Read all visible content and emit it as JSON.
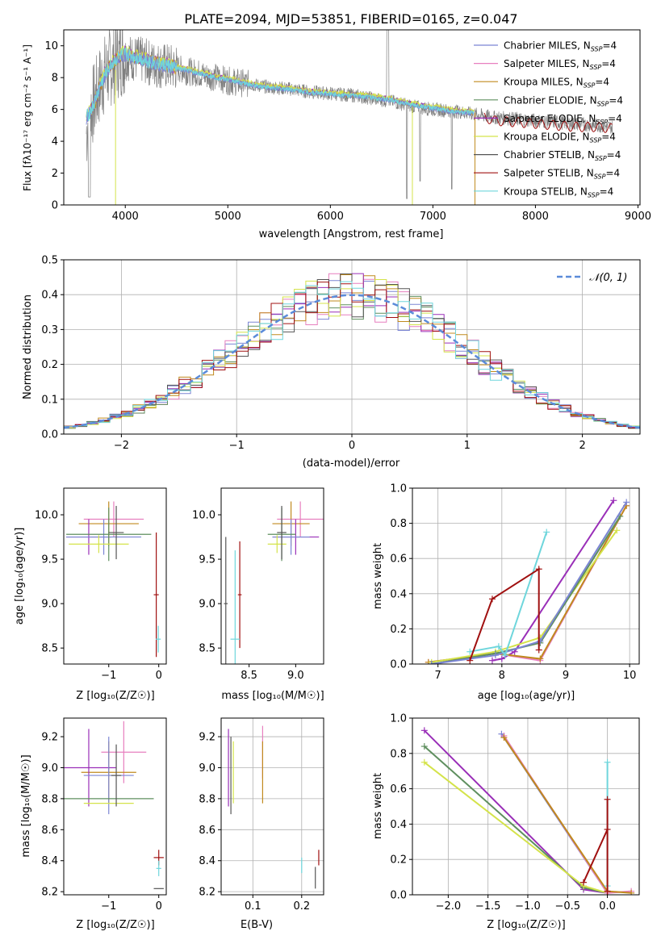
{
  "figure_title": "PLATE=2094, MJD=53851, FIBERID=0165, z=0.047",
  "colors": {
    "Chabrier MILES": "#7b85d4",
    "Salpeter MILES": "#e77fbf",
    "Kroupa MILES": "#c08a1e",
    "Chabrier ELODIE": "#5f8f5f",
    "Salpeter ELODIE": "#9a2fb8",
    "Kroupa ELODIE": "#d4e34a",
    "Chabrier STELIB": "#555555",
    "Salpeter STELIB": "#a01010",
    "Kroupa STELIB": "#6fd6dc",
    "data": "#808080",
    "normal": "#5b8bd9",
    "grid": "#b0b0b0"
  },
  "chart_data": [
    {
      "id": "spectrum",
      "type": "line",
      "xlabel": "wavelength [Angstrom, rest frame]",
      "ylabel": "Flux [fλ10⁻¹⁷ erg cm⁻² s⁻¹ A⁻¹]",
      "xlim": [
        3400,
        9020
      ],
      "ylim": [
        0,
        11
      ],
      "xticks": [
        4000,
        5000,
        6000,
        7000,
        8000,
        9000
      ],
      "yticks": [
        0,
        2,
        4,
        6,
        8,
        10
      ],
      "grid": false,
      "legend_position": "upper right",
      "legend": [
        {
          "label": "Chabrier MILES, N",
          "sub": "SSP",
          "suffix": "=4"
        },
        {
          "label": "Salpeter MILES, N",
          "sub": "SSP",
          "suffix": "=4"
        },
        {
          "label": "Kroupa MILES, N",
          "sub": "SSP",
          "suffix": "=4"
        },
        {
          "label": "Chabrier ELODIE, N",
          "sub": "SSP",
          "suffix": "=4"
        },
        {
          "label": "Salpeter ELODIE, N",
          "sub": "SSP",
          "suffix": "=4"
        },
        {
          "label": "Kroupa ELODIE, N",
          "sub": "SSP",
          "suffix": "=4"
        },
        {
          "label": "Chabrier STELIB, N",
          "sub": "SSP",
          "suffix": "=4"
        },
        {
          "label": "Salpeter STELIB, N",
          "sub": "SSP",
          "suffix": "=4"
        },
        {
          "label": "Kroupa STELIB, N",
          "sub": "SSP",
          "suffix": "=4"
        }
      ],
      "data_series": {
        "name": "data",
        "x": [
          3620,
          3650,
          3700,
          3750,
          3800,
          3850,
          3900,
          3950,
          4000,
          4100,
          4200,
          4300,
          4400,
          4500,
          4600,
          4700,
          4800,
          4900,
          5000,
          5200,
          5400,
          5600,
          5800,
          6000,
          6200,
          6400,
          6600,
          6800,
          7000,
          7200,
          7400,
          7600,
          7800,
          8000,
          8200,
          8400,
          8600,
          8750
        ],
        "y": [
          4.5,
          5.8,
          6.5,
          7.5,
          8.2,
          8.6,
          9.0,
          9.3,
          9.3,
          9.2,
          9.0,
          8.8,
          8.7,
          8.6,
          8.4,
          8.3,
          8.1,
          8.0,
          7.8,
          7.6,
          7.4,
          7.3,
          7.1,
          7.0,
          6.9,
          6.7,
          6.5,
          6.2,
          6.0,
          5.9,
          5.7,
          5.5,
          5.4,
          5.3,
          5.2,
          5.1,
          5.0,
          4.9
        ]
      },
      "model_curve": {
        "x": [
          3620,
          3650,
          3700,
          3750,
          3800,
          3850,
          3900,
          3950,
          4000,
          4100,
          4200,
          4300,
          4400,
          4500,
          4600,
          4700,
          4800,
          4900,
          5000,
          5200,
          5400,
          5600,
          5800,
          6000,
          6200,
          6400,
          6600,
          6800,
          7000,
          7200,
          7400
        ],
        "y": [
          5.5,
          5.8,
          6.4,
          7.4,
          8.2,
          8.7,
          9.1,
          9.4,
          9.5,
          9.3,
          9.1,
          8.9,
          8.8,
          8.6,
          8.5,
          8.3,
          8.2,
          8.0,
          7.9,
          7.6,
          7.4,
          7.3,
          7.1,
          7.0,
          6.9,
          6.8,
          6.6,
          6.3,
          6.1,
          5.9,
          5.8
        ]
      },
      "stelib_curve": {
        "x": [
          7500,
          7600,
          7800,
          8000,
          8200,
          8400,
          8600,
          8750
        ],
        "y": [
          5.5,
          5.3,
          5.2,
          5.1,
          5.0,
          4.9,
          4.9,
          4.8
        ]
      }
    },
    {
      "id": "residuals",
      "type": "step",
      "xlabel": "(data-model)/error",
      "ylabel": "Normed distribution",
      "xlim": [
        -2.5,
        2.5
      ],
      "ylim": [
        0,
        0.5
      ],
      "xticks": [
        -2,
        -1,
        0,
        1,
        2
      ],
      "yticks": [
        0.0,
        0.1,
        0.2,
        0.3,
        0.4,
        0.5
      ],
      "grid": true,
      "legend_position": "upper right",
      "normal_label": "𝒩(0, 1)"
    },
    {
      "id": "age_vs_Z",
      "type": "errorbar",
      "xlabel": "Z [log₁₀(Z/Z☉)]",
      "ylabel": "age  [log₁₀(age/yr)]",
      "xlim": [
        -1.9,
        0.15
      ],
      "ylim": [
        8.32,
        10.3
      ],
      "xticks": [
        -1,
        0
      ],
      "yticks": [
        8.5,
        9.0,
        9.5,
        10.0
      ],
      "grid": false,
      "points": [
        {
          "x": -0.9,
          "y": 9.95,
          "xerr": 0.6,
          "yerr": 0.2,
          "color": "#e77fbf"
        },
        {
          "x": -1.0,
          "y": 9.9,
          "xerr": 0.6,
          "yerr": 0.25,
          "color": "#c08a1e"
        },
        {
          "x": -1.4,
          "y": 9.75,
          "xerr": 0.45,
          "yerr": 0.2,
          "color": "#9a2fb8"
        },
        {
          "x": -1.1,
          "y": 9.75,
          "xerr": 0.75,
          "yerr": 0.2,
          "color": "#7b85d4"
        },
        {
          "x": -1.0,
          "y": 9.78,
          "xerr": 0.85,
          "yerr": 0.3,
          "color": "#5f8f5f"
        },
        {
          "x": -1.2,
          "y": 9.67,
          "xerr": 0.6,
          "yerr": 0.1,
          "color": "#d4e34a"
        },
        {
          "x": -0.85,
          "y": 9.8,
          "xerr": 0.15,
          "yerr": 0.3,
          "color": "#555555"
        },
        {
          "x": -0.05,
          "y": 9.1,
          "xerr": 0.05,
          "yerr": 0.7,
          "color": "#a01010"
        },
        {
          "x": -0.01,
          "y": 8.6,
          "xerr": 0.05,
          "yerr": 0.15,
          "color": "#6fd6dc"
        }
      ]
    },
    {
      "id": "age_vs_mass",
      "type": "errorbar",
      "xlabel": "mass [log₁₀(M/M☉)]",
      "ylabel": "",
      "xlim": [
        8.2,
        9.3
      ],
      "ylim": [
        8.32,
        10.3
      ],
      "xticks": [
        8.5,
        9.0
      ],
      "yticks": [
        8.5,
        9.0,
        9.5,
        10.0
      ],
      "grid": false,
      "points": [
        {
          "x": 9.05,
          "y": 9.95,
          "xerr": 0.25,
          "yerr": 0.2,
          "color": "#e77fbf"
        },
        {
          "x": 8.95,
          "y": 9.9,
          "xerr": 0.2,
          "yerr": 0.25,
          "color": "#c08a1e"
        },
        {
          "x": 9.0,
          "y": 9.75,
          "xerr": 0.25,
          "yerr": 0.2,
          "color": "#9a2fb8"
        },
        {
          "x": 8.95,
          "y": 9.75,
          "xerr": 0.2,
          "yerr": 0.2,
          "color": "#7b85d4"
        },
        {
          "x": 8.85,
          "y": 9.78,
          "xerr": 0.15,
          "yerr": 0.3,
          "color": "#5f8f5f"
        },
        {
          "x": 8.8,
          "y": 9.67,
          "xerr": 0.1,
          "yerr": 0.1,
          "color": "#d4e34a"
        },
        {
          "x": 8.85,
          "y": 9.8,
          "xerr": 0.05,
          "yerr": 0.3,
          "color": "#555555"
        },
        {
          "x": 8.4,
          "y": 9.1,
          "xerr": 0.02,
          "yerr": 0.6,
          "color": "#a01010"
        },
        {
          "x": 8.35,
          "y": 8.6,
          "xerr": 0.05,
          "yerr": 1.0,
          "color": "#6fd6dc"
        },
        {
          "x": 8.25,
          "y": 9.0,
          "xerr": 0.02,
          "yerr": 0.75,
          "color": "#555555"
        }
      ]
    },
    {
      "id": "massweight_vs_age",
      "type": "line",
      "xlabel": "age  [log₁₀(age/yr)]",
      "ylabel": "mass weight",
      "xlim": [
        6.6,
        10.15
      ],
      "ylim": [
        0,
        1.0
      ],
      "xticks": [
        7,
        8,
        9,
        10
      ],
      "yticks": [
        0.0,
        0.2,
        0.4,
        0.6,
        0.8,
        1.0
      ],
      "grid": true,
      "series": [
        {
          "color": "#9a2fb8",
          "x": [
            7.85,
            8.0,
            8.2,
            9.75
          ],
          "y": [
            0.02,
            0.03,
            0.07,
            0.93
          ]
        },
        {
          "color": "#e77fbf",
          "x": [
            6.85,
            7.9,
            8.6,
            9.95
          ],
          "y": [
            0.01,
            0.06,
            0.02,
            0.9
          ]
        },
        {
          "color": "#c08a1e",
          "x": [
            6.85,
            7.9,
            8.6,
            9.95
          ],
          "y": [
            0.01,
            0.06,
            0.03,
            0.9
          ]
        },
        {
          "color": "#d4e34a",
          "x": [
            6.9,
            7.9,
            8.6,
            9.8
          ],
          "y": [
            0.01,
            0.07,
            0.15,
            0.76
          ]
        },
        {
          "color": "#5f8f5f",
          "x": [
            6.9,
            7.9,
            8.6,
            9.85
          ],
          "y": [
            0.0,
            0.06,
            0.12,
            0.84
          ]
        },
        {
          "color": "#7b85d4",
          "x": [
            6.9,
            7.9,
            8.6,
            9.95
          ],
          "y": [
            0.0,
            0.05,
            0.13,
            0.92
          ]
        },
        {
          "color": "#6fd6dc",
          "x": [
            7.5,
            7.95,
            8.05,
            8.7
          ],
          "y": [
            0.07,
            0.1,
            0.05,
            0.75
          ]
        },
        {
          "color": "#a01010",
          "x": [
            7.5,
            7.85,
            8.58,
            8.58
          ],
          "y": [
            0.02,
            0.37,
            0.54,
            0.08
          ]
        }
      ]
    },
    {
      "id": "mass_vs_Z",
      "type": "errorbar",
      "xlabel": "Z [log₁₀(Z/Z☉)]",
      "ylabel": "mass [log₁₀(M/M☉)]",
      "xlim": [
        -1.9,
        0.15
      ],
      "ylim": [
        8.18,
        9.32
      ],
      "xticks": [
        -1,
        0
      ],
      "yticks": [
        8.2,
        8.4,
        8.6,
        8.8,
        9.0,
        9.2
      ],
      "grid": false,
      "points": [
        {
          "x": -0.7,
          "y": 9.1,
          "xerr": 0.45,
          "yerr": 0.2,
          "color": "#e77fbf"
        },
        {
          "x": -1.0,
          "y": 8.97,
          "xerr": 0.55,
          "yerr": 0.2,
          "color": "#c08a1e"
        },
        {
          "x": -1.4,
          "y": 9.0,
          "xerr": 0.55,
          "yerr": 0.25,
          "color": "#9a2fb8"
        },
        {
          "x": -1.0,
          "y": 8.95,
          "xerr": 0.5,
          "yerr": 0.25,
          "color": "#7b85d4"
        },
        {
          "x": -1.0,
          "y": 8.8,
          "xerr": 0.9,
          "yerr": 0.0,
          "color": "#5f8f5f"
        },
        {
          "x": -1.0,
          "y": 8.77,
          "xerr": 0.5,
          "yerr": 0.0,
          "color": "#d4e34a"
        },
        {
          "x": -0.85,
          "y": 8.95,
          "xerr": 0.1,
          "yerr": 0.2,
          "color": "#555555"
        },
        {
          "x": 0.0,
          "y": 8.42,
          "xerr": 0.1,
          "yerr": 0.05,
          "color": "#a01010"
        },
        {
          "x": 0.0,
          "y": 8.35,
          "xerr": 0.05,
          "yerr": 0.05,
          "color": "#6fd6dc"
        },
        {
          "x": 0.0,
          "y": 8.22,
          "xerr": 0.1,
          "yerr": 0.0,
          "color": "#555555"
        }
      ]
    },
    {
      "id": "mass_vs_EBV",
      "type": "errorbar",
      "xlabel": "E(B-V)",
      "ylabel": "",
      "xlim": [
        0.035,
        0.245
      ],
      "ylim": [
        8.18,
        9.32
      ],
      "xticks": [
        0.1,
        0.2
      ],
      "yticks": [
        8.2,
        8.4,
        8.6,
        8.8,
        9.0,
        9.2
      ],
      "grid": true,
      "points": [
        {
          "x": 0.05,
          "y": 9.0,
          "xerr": 0.0,
          "yerr": 0.25,
          "color": "#9a2fb8"
        },
        {
          "x": 0.055,
          "y": 8.95,
          "xerr": 0.0,
          "yerr": 0.25,
          "color": "#555555"
        },
        {
          "x": 0.06,
          "y": 8.97,
          "xerr": 0.0,
          "yerr": 0.2,
          "color": "#d4e34a"
        },
        {
          "x": 0.12,
          "y": 9.1,
          "xerr": 0.0,
          "yerr": 0.17,
          "color": "#e77fbf"
        },
        {
          "x": 0.12,
          "y": 8.97,
          "xerr": 0.0,
          "yerr": 0.2,
          "color": "#c08a1e"
        },
        {
          "x": 0.2,
          "y": 8.37,
          "xerr": 0.0,
          "yerr": 0.05,
          "color": "#6fd6dc"
        },
        {
          "x": 0.235,
          "y": 8.42,
          "xerr": 0.0,
          "yerr": 0.05,
          "color": "#a01010"
        },
        {
          "x": 0.228,
          "y": 8.29,
          "xerr": 0.0,
          "yerr": 0.07,
          "color": "#555555"
        }
      ]
    },
    {
      "id": "massweight_vs_Z",
      "type": "line",
      "xlabel": "Z [log₁₀(Z/Z☉)]",
      "ylabel": "mass weight",
      "xlim": [
        -2.45,
        0.4
      ],
      "ylim": [
        0,
        1.0
      ],
      "xticks": [
        -2.0,
        -1.5,
        -1.0,
        -0.5,
        0.0
      ],
      "yticks": [
        0.0,
        0.2,
        0.4,
        0.6,
        0.8,
        1.0
      ],
      "grid": true,
      "series": [
        {
          "color": "#9a2fb8",
          "x": [
            -2.3,
            -0.3,
            0.0
          ],
          "y": [
            0.93,
            0.03,
            0.01
          ]
        },
        {
          "color": "#5f8f5f",
          "x": [
            -2.3,
            -0.3,
            0.0
          ],
          "y": [
            0.84,
            0.04,
            0.01
          ]
        },
        {
          "color": "#d4e34a",
          "x": [
            -2.3,
            -0.3,
            0.0
          ],
          "y": [
            0.75,
            0.05,
            0.01
          ]
        },
        {
          "color": "#7b85d4",
          "x": [
            -1.33,
            0.0
          ],
          "y": [
            0.91,
            0.01
          ]
        },
        {
          "color": "#e77fbf",
          "x": [
            -1.3,
            0.0,
            0.3
          ],
          "y": [
            0.9,
            0.01,
            0.02
          ]
        },
        {
          "color": "#c08a1e",
          "x": [
            -1.3,
            0.0,
            0.3
          ],
          "y": [
            0.89,
            0.02,
            0.01
          ]
        },
        {
          "color": "#6fd6dc",
          "x": [
            0.0,
            0.0
          ],
          "y": [
            0.75,
            0.05
          ]
        },
        {
          "color": "#a01010",
          "x": [
            -0.3,
            0.0,
            0.0,
            0.0
          ],
          "y": [
            0.07,
            0.37,
            0.54,
            0.02
          ]
        }
      ]
    }
  ]
}
